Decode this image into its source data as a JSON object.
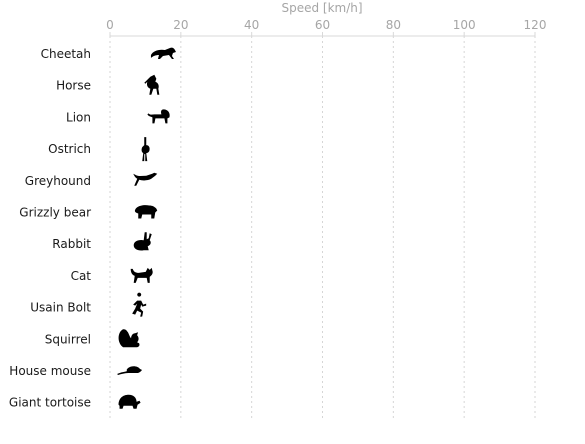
{
  "chart_data": {
    "type": "scatter",
    "title": "",
    "xlabel": "Speed [km/h]",
    "ylabel": "",
    "xlim": [
      0,
      120
    ],
    "xticks": [
      0,
      20,
      40,
      60,
      80,
      100,
      120
    ],
    "x_axis_position": "top",
    "grid": "vertical dotted",
    "marker_style": "animal pictogram icons",
    "categories": [
      "Cheetah",
      "Horse",
      "Lion",
      "Ostrich",
      "Greyhound",
      "Grizzly bear",
      "Rabbit",
      "Cat",
      "Usain Bolt",
      "Squirrel",
      "House mouse",
      "Giant tortoise"
    ],
    "icons": [
      "cheetah-icon",
      "horse-icon",
      "lion-icon",
      "ostrich-icon",
      "greyhound-icon",
      "grizzly-bear-icon",
      "rabbit-icon",
      "cat-icon",
      "runner-icon",
      "squirrel-icon",
      "mouse-icon",
      "tortoise-icon"
    ],
    "values": [
      11,
      8,
      10,
      6,
      6,
      6,
      5,
      5,
      4,
      2,
      2,
      1
    ],
    "color": "#000000"
  }
}
